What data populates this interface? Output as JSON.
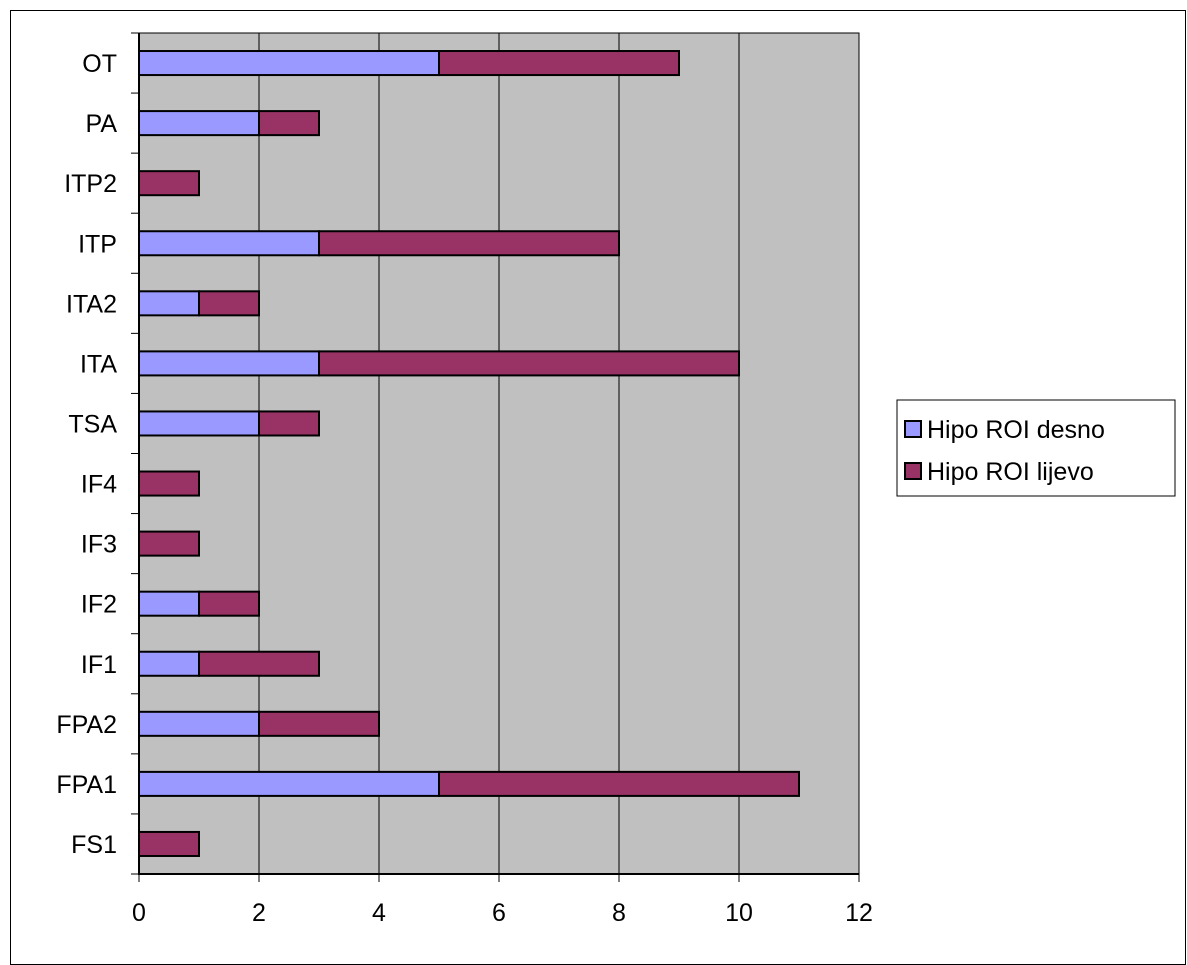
{
  "colors": {
    "plot_background": "#c0c0c0",
    "gridline": "#000000",
    "axis": "#000000",
    "series_right": "#9999ff",
    "series_left": "#993366"
  },
  "chart_data": {
    "type": "bar",
    "orientation": "horizontal",
    "stacked": true,
    "title": "",
    "xlabel": "",
    "ylabel": "",
    "xlim": [
      0,
      12
    ],
    "x_ticks": [
      0,
      2,
      4,
      6,
      8,
      10,
      12
    ],
    "grid": "vertical",
    "legend_position": "right",
    "categories": [
      "FS1",
      "FPA1",
      "FPA2",
      "IF1",
      "IF2",
      "IF3",
      "IF4",
      "TSA",
      "ITA",
      "ITA2",
      "ITP",
      "ITP2",
      "PA",
      "OT"
    ],
    "series": [
      {
        "name": "Hipo ROI desno",
        "color": "#9999ff",
        "values": [
          0,
          5,
          2,
          1,
          1,
          0,
          0,
          2,
          3,
          1,
          3,
          0,
          2,
          5
        ]
      },
      {
        "name": "Hipo ROI lijevo",
        "color": "#993366",
        "values": [
          1,
          6,
          2,
          2,
          1,
          1,
          1,
          1,
          7,
          1,
          5,
          1,
          1,
          4
        ]
      }
    ]
  }
}
